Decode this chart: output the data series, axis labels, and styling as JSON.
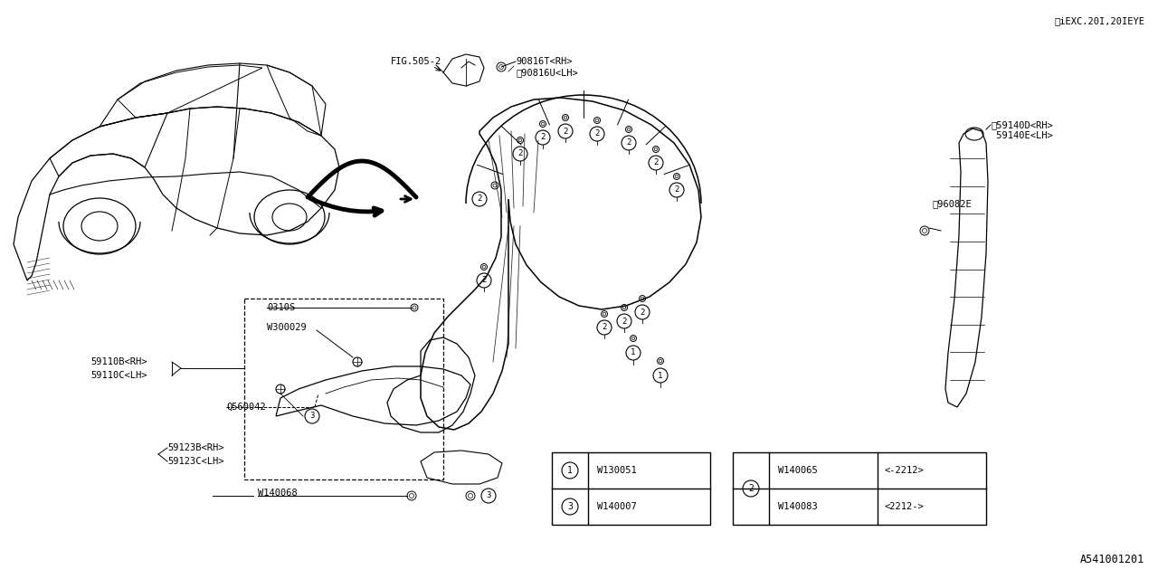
{
  "bg_color": "#ffffff",
  "lc": "#000000",
  "fig_number": "A541001201",
  "top_right_note": "※iEXC.20I,20IEYE",
  "fig_ref": "FIG.505-2",
  "label_90816T": "90816T<RH>",
  "label_90816U": "※90816U<LH>",
  "label_59140D": "※59140D<RH>",
  "label_59140E": " 59140E<LH>",
  "label_96082E": "※96082E",
  "label_0310S": "0310S",
  "label_W300029": "W300029",
  "label_59110B": "59110B<RH>",
  "label_59110C": "59110C<LH>",
  "label_Q560042": "Q560042",
  "label_59123B": "59123B<RH>",
  "label_59123C": "59123C<LH>",
  "label_W140068": "W140068",
  "leg1_c": "1",
  "leg1_code": "W130051",
  "leg3_c": "3",
  "leg3_code": "W140007",
  "leg2_c": "2",
  "leg2a_code": "W140065",
  "leg2a_range": "<-2212>",
  "leg2b_code": "W140083",
  "leg2b_range": "<2212->",
  "fs_main": 7.5,
  "fs_small": 6.5
}
